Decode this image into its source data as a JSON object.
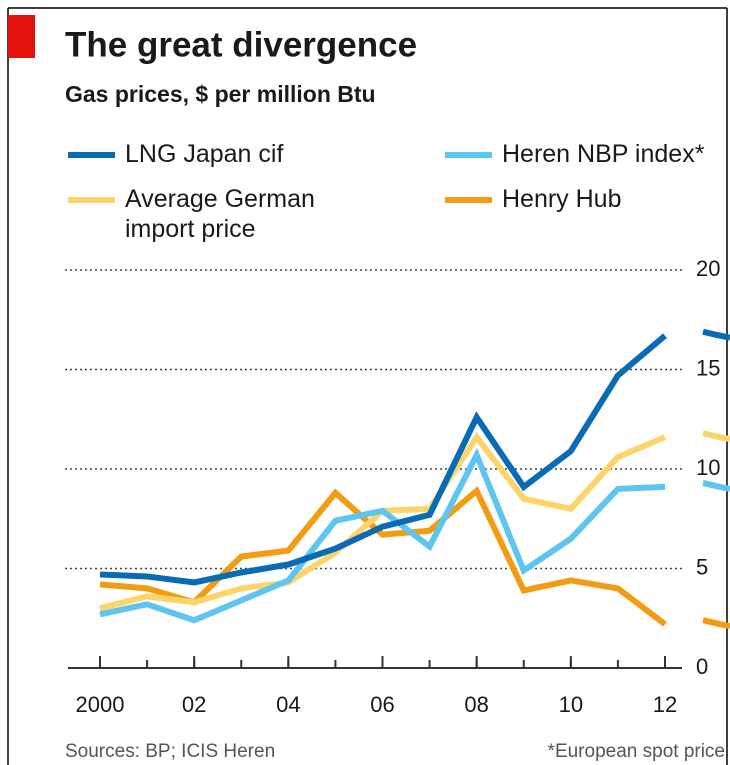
{
  "chart_data": {
    "type": "line",
    "title": "The great divergence",
    "subtitle": "Gas prices, $ per million Btu",
    "x": [
      2000,
      2001,
      2002,
      2003,
      2004,
      2005,
      2006,
      2007,
      2008,
      2009,
      2010,
      2011,
      2012
    ],
    "xlim": [
      2000,
      2012
    ],
    "xticks": [
      {
        "value": 2000,
        "label": "2000"
      },
      {
        "value": 2002,
        "label": "02"
      },
      {
        "value": 2004,
        "label": "04"
      },
      {
        "value": 2006,
        "label": "06"
      },
      {
        "value": 2008,
        "label": "08"
      },
      {
        "value": 2010,
        "label": "10"
      },
      {
        "value": 2012,
        "label": "12"
      }
    ],
    "ylim": [
      0,
      20
    ],
    "yticks": [
      0,
      5,
      10,
      15,
      20
    ],
    "grid": true,
    "series": [
      {
        "name": "LNG Japan cif",
        "color": "#0a6bb5",
        "values": [
          4.7,
          4.6,
          4.3,
          4.8,
          5.2,
          6.0,
          7.1,
          7.7,
          12.6,
          9.1,
          10.9,
          14.7,
          16.7
        ]
      },
      {
        "name": "Heren NBP index*",
        "color": "#5ec5f0",
        "values": [
          2.7,
          3.2,
          2.4,
          3.4,
          4.4,
          7.4,
          7.9,
          6.1,
          10.7,
          4.9,
          6.5,
          9.0,
          9.1
        ]
      },
      {
        "name": "Average German import price",
        "color": "#fdd46a",
        "values": [
          3.0,
          3.6,
          3.3,
          4.0,
          4.3,
          5.8,
          7.9,
          8.0,
          11.6,
          8.5,
          8.0,
          10.6,
          11.6
        ]
      },
      {
        "name": "Henry Hub",
        "color": "#f39c12",
        "values": [
          4.2,
          4.0,
          3.3,
          5.6,
          5.9,
          8.8,
          6.7,
          6.9,
          8.9,
          3.9,
          4.4,
          4.0,
          2.2
        ]
      }
    ],
    "sources": "Sources: BP; ICIS Heren",
    "footnote": "*European spot price"
  }
}
